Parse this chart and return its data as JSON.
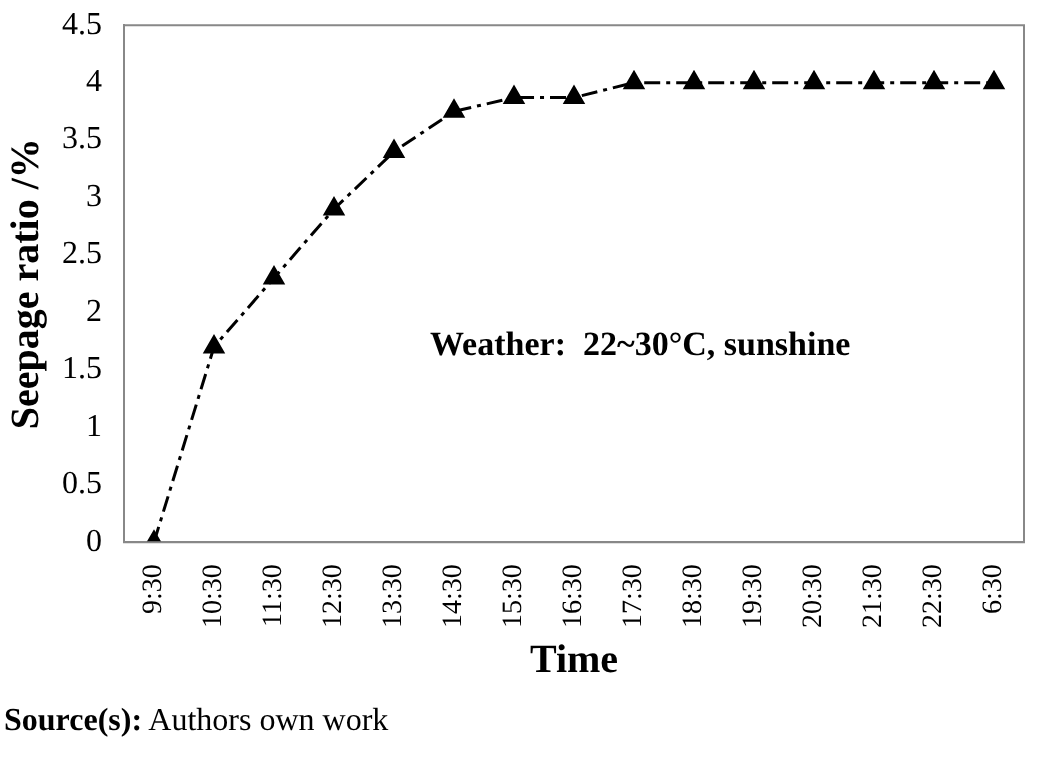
{
  "chart_data": {
    "type": "line",
    "xlabel": "Time",
    "ylabel": "Seepage ratio /%",
    "categories": [
      "9:30",
      "10:30",
      "11:30",
      "12:30",
      "13:30",
      "14:30",
      "15:30",
      "16:30",
      "17:30",
      "18:30",
      "19:30",
      "20:30",
      "21:30",
      "22:30",
      "6:30"
    ],
    "series": [
      {
        "color": "#000000",
        "values": [
          0,
          1.7,
          2.3,
          2.9,
          3.4,
          3.75,
          3.87,
          3.87,
          4.0,
          4.0,
          4.0,
          4.0,
          4.0,
          4.0,
          4.0
        ]
      }
    ],
    "ylim": [
      0,
      4.5
    ],
    "yticks": [
      0,
      0.5,
      1,
      1.5,
      2,
      2.5,
      3,
      3.5,
      4,
      4.5
    ],
    "grid": false,
    "legend": false,
    "marker": "triangle",
    "line_style": "dashed",
    "annotations": [
      "Weather:  22~30°C, sunshine",
      "Source(s): Authors own work"
    ]
  }
}
